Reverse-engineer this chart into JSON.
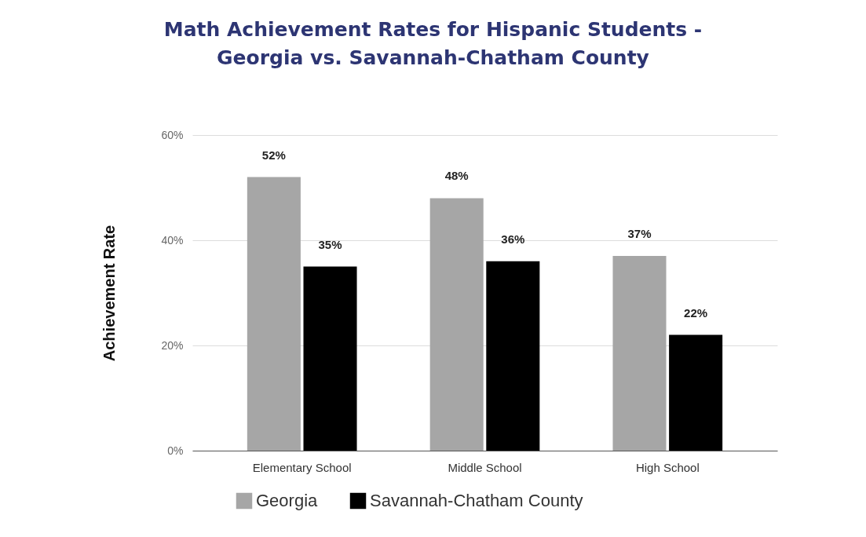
{
  "chart_data": {
    "type": "bar",
    "title": "Math Achievement Rates for Hispanic Students -\nGeorgia vs. Savannah-Chatham County",
    "ylabel": "Achievement Rate",
    "categories": [
      "Elementary School",
      "Middle School",
      "High School"
    ],
    "series": [
      {
        "name": "Georgia",
        "color": "#a6a6a6",
        "values": [
          52,
          48,
          37
        ],
        "value_labels": [
          "52%",
          "48%",
          "37%"
        ]
      },
      {
        "name": "Savannah-Chatham County",
        "color": "#000000",
        "values": [
          35,
          36,
          22
        ],
        "value_labels": [
          "35%",
          "36%",
          "22%"
        ]
      }
    ],
    "ylim": [
      0,
      60
    ],
    "yticks": [
      {
        "value": 0,
        "label": "0%"
      },
      {
        "value": 20,
        "label": "20%"
      },
      {
        "value": 40,
        "label": "40%"
      },
      {
        "value": 60,
        "label": "60%"
      }
    ],
    "grid": "y",
    "legend": "bottom"
  }
}
